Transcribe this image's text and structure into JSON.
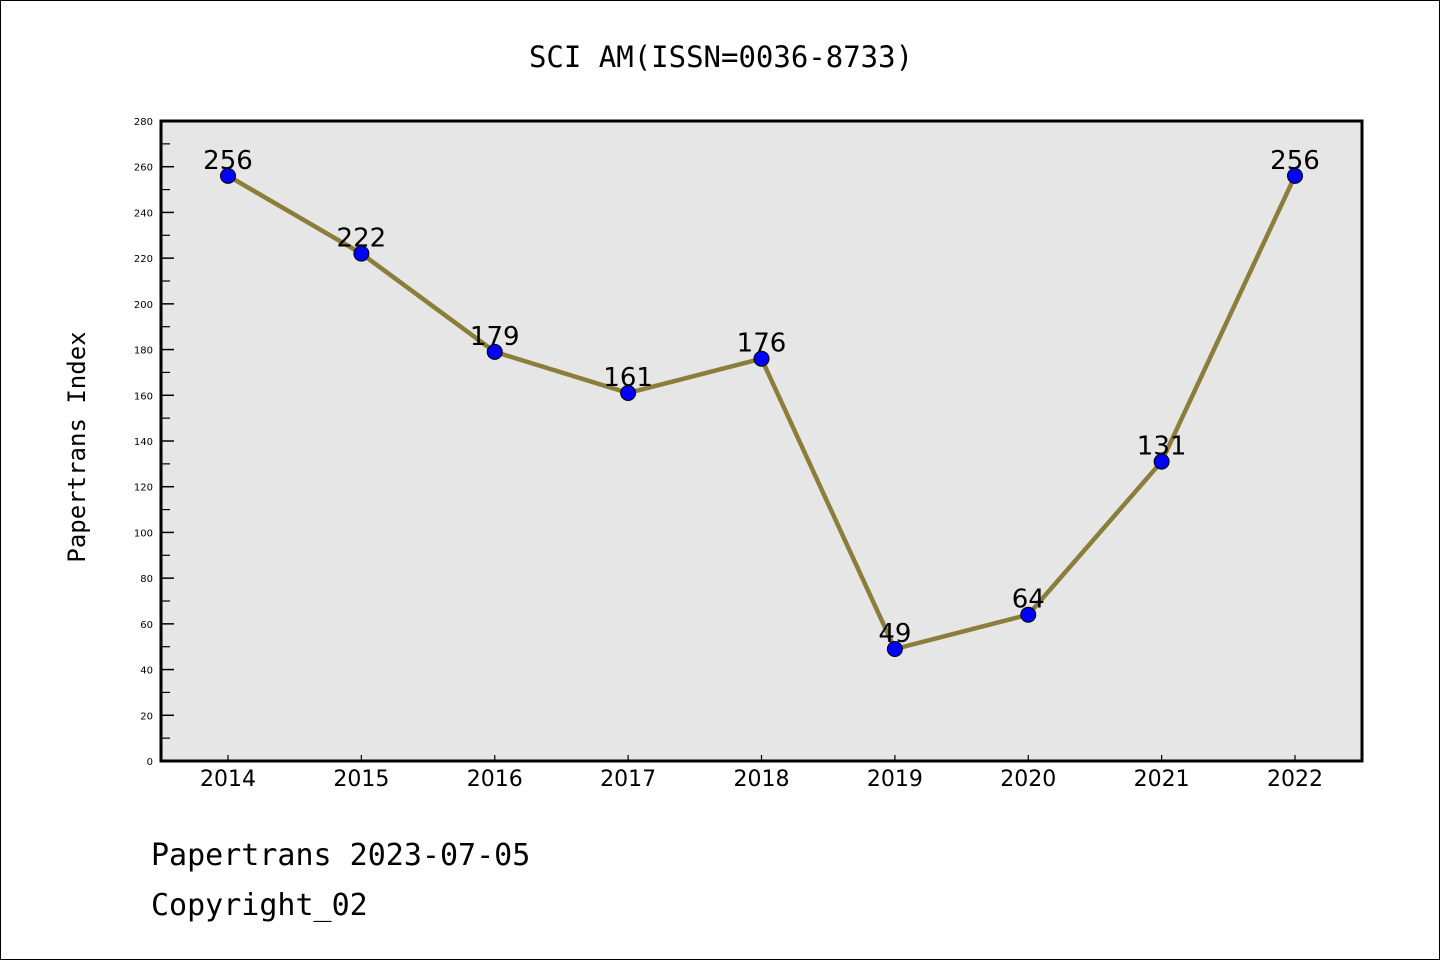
{
  "chart_data": {
    "type": "line",
    "title": "SCI AM(ISSN=0036-8733)",
    "xlabel": "",
    "ylabel": "Papertrans Index",
    "categories": [
      "2014",
      "2015",
      "2016",
      "2017",
      "2018",
      "2019",
      "2020",
      "2021",
      "2022"
    ],
    "values": [
      256,
      222,
      179,
      161,
      176,
      49,
      64,
      131,
      256
    ],
    "ylim": [
      0,
      280
    ],
    "yticks": [
      0,
      20,
      40,
      60,
      80,
      100,
      120,
      140,
      160,
      180,
      200,
      220,
      240,
      260,
      280
    ],
    "grid": false,
    "line_color": "#8b7d3a",
    "marker_color": "#0000ff",
    "plot_background": "#e6e6e6"
  },
  "footer": {
    "line1": "Papertrans 2023-07-05",
    "line2": "Copyright_02"
  }
}
